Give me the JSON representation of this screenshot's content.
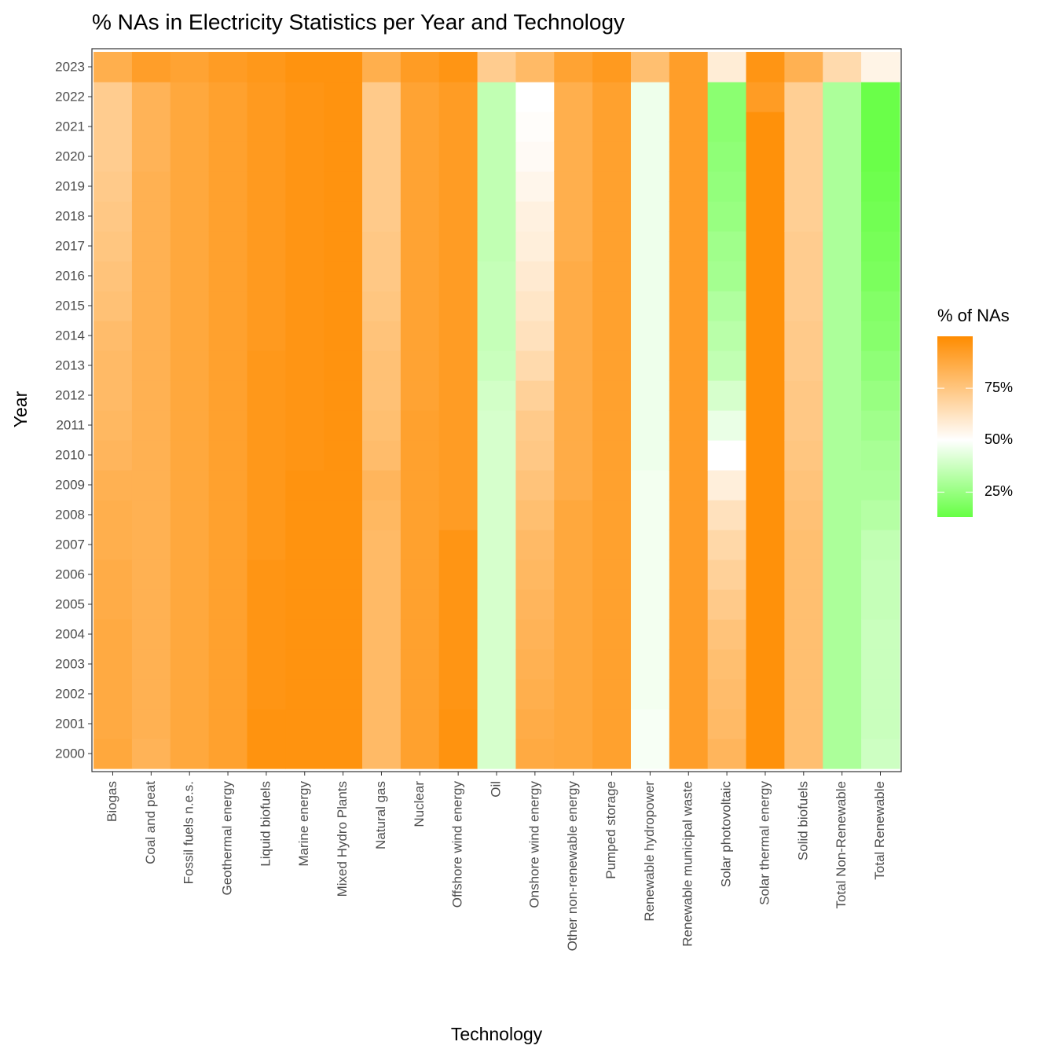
{
  "chart_data": {
    "type": "heatmap",
    "title": "% NAs in Electricity Statistics per Year and Technology",
    "x_label": "Technology",
    "y_label": "Year",
    "x_categories": [
      "Biogas",
      "Coal and peat",
      "Fossil fuels n.e.s.",
      "Geothermal energy",
      "Liquid biofuels",
      "Marine energy",
      "Mixed Hydro Plants",
      "Natural gas",
      "Nuclear",
      "Offshore wind energy",
      "Oil",
      "Onshore wind energy",
      "Other non-renewable energy",
      "Pumped storage",
      "Renewable hydropower",
      "Renewable municipal waste",
      "Solar photovoltaic",
      "Solar thermal energy",
      "Solid biofuels",
      "Total Non-Renewable",
      "Total Renewable"
    ],
    "y_categories": [
      2000,
      2001,
      2002,
      2003,
      2004,
      2005,
      2006,
      2007,
      2008,
      2009,
      2010,
      2011,
      2012,
      2013,
      2014,
      2015,
      2016,
      2017,
      2018,
      2019,
      2020,
      2021,
      2022,
      2023
    ],
    "values": [
      [
        88,
        87,
        87,
        87,
        87,
        86,
        86,
        85,
        85,
        84,
        82,
        81,
        80,
        80,
        79,
        77,
        76,
        75,
        74,
        73,
        72,
        72,
        72,
        85
      ],
      [
        83,
        84,
        84,
        84,
        84,
        84,
        84,
        84,
        84,
        84,
        84,
        84,
        84,
        84,
        84,
        84,
        84,
        84,
        84,
        84,
        83,
        83,
        83,
        92
      ],
      [
        88,
        88,
        88,
        88,
        88,
        88,
        88,
        88,
        88,
        88,
        88,
        88,
        88,
        88,
        88,
        88,
        88,
        88,
        88,
        88,
        88,
        88,
        88,
        90
      ],
      [
        91,
        91,
        91,
        91,
        91,
        91,
        91,
        91,
        91,
        91,
        91,
        91,
        91,
        91,
        91,
        91,
        91,
        91,
        91,
        91,
        91,
        91,
        91,
        93
      ],
      [
        97,
        97,
        96,
        96,
        96,
        96,
        96,
        95,
        95,
        95,
        95,
        95,
        95,
        95,
        94,
        94,
        94,
        94,
        94,
        94,
        94,
        94,
        94,
        95
      ],
      [
        97,
        97,
        97,
        97,
        97,
        97,
        97,
        97,
        97,
        97,
        96,
        96,
        96,
        96,
        96,
        96,
        96,
        96,
        96,
        96,
        96,
        96,
        96,
        97
      ],
      [
        97,
        97,
        97,
        97,
        97,
        97,
        97,
        97,
        97,
        97,
        97,
        97,
        97,
        97,
        97,
        97,
        97,
        97,
        97,
        97,
        97,
        97,
        97,
        97
      ],
      [
        80,
        80,
        80,
        80,
        80,
        80,
        80,
        80,
        81,
        82,
        79,
        78,
        77,
        77,
        76,
        75,
        74,
        74,
        73,
        73,
        73,
        73,
        73,
        85
      ],
      [
        91,
        91,
        91,
        91,
        91,
        91,
        91,
        91,
        91,
        91,
        91,
        91,
        90,
        90,
        90,
        90,
        90,
        90,
        90,
        90,
        90,
        90,
        90,
        93
      ],
      [
        97,
        97,
        96,
        96,
        96,
        96,
        96,
        96,
        93,
        93,
        93,
        93,
        93,
        93,
        93,
        93,
        93,
        93,
        93,
        93,
        93,
        93,
        93,
        96
      ],
      [
        40,
        40,
        40,
        40,
        40,
        40,
        40,
        40,
        40,
        40,
        40,
        40,
        39,
        37,
        36,
        36,
        36,
        35,
        35,
        35,
        35,
        35,
        35,
        72
      ],
      [
        87,
        86,
        85,
        84,
        83,
        82,
        81,
        80,
        78,
        76,
        74,
        73,
        70,
        66,
        63,
        61,
        59,
        57,
        56,
        54,
        52,
        51,
        50,
        80
      ],
      [
        88,
        88,
        88,
        88,
        88,
        88,
        88,
        88,
        88,
        86,
        86,
        86,
        86,
        86,
        86,
        86,
        86,
        85,
        85,
        85,
        85,
        85,
        85,
        90
      ],
      [
        91,
        91,
        91,
        91,
        91,
        91,
        91,
        91,
        91,
        91,
        91,
        91,
        91,
        91,
        91,
        91,
        91,
        91,
        91,
        91,
        91,
        91,
        91,
        94
      ],
      [
        48,
        48,
        47,
        47,
        47,
        47,
        47,
        47,
        47,
        47,
        46,
        46,
        46,
        46,
        46,
        46,
        46,
        46,
        46,
        46,
        46,
        46,
        46,
        78
      ],
      [
        92,
        92,
        92,
        92,
        92,
        92,
        92,
        92,
        92,
        92,
        92,
        92,
        92,
        92,
        92,
        92,
        92,
        92,
        92,
        92,
        92,
        92,
        92,
        92
      ],
      [
        82,
        80,
        79,
        78,
        76,
        73,
        70,
        67,
        63,
        57,
        50,
        45,
        40,
        35,
        33,
        31,
        28,
        27,
        25,
        24,
        23,
        22,
        22,
        58
      ],
      [
        98,
        98,
        98,
        98,
        98,
        98,
        98,
        98,
        98,
        98,
        98,
        98,
        98,
        98,
        98,
        98,
        98,
        98,
        98,
        98,
        98,
        98,
        93,
        96
      ],
      [
        78,
        78,
        78,
        78,
        78,
        78,
        78,
        78,
        77,
        76,
        75,
        74,
        74,
        73,
        73,
        72,
        72,
        72,
        71,
        71,
        71,
        71,
        71,
        84
      ],
      [
        30,
        30,
        30,
        30,
        30,
        30,
        30,
        30,
        30,
        30,
        30,
        30,
        30,
        30,
        30,
        30,
        30,
        30,
        30,
        30,
        30,
        30,
        30,
        66
      ],
      [
        38,
        37,
        37,
        37,
        37,
        36,
        36,
        35,
        32,
        30,
        29,
        27,
        25,
        23,
        21,
        20,
        18,
        17,
        16,
        15,
        14,
        14,
        14,
        55
      ]
    ],
    "legend_title": "% of NAs",
    "zlim": [
      13,
      100
    ],
    "zticks": [
      {
        "value": 25,
        "label": "25%"
      },
      {
        "value": 50,
        "label": "50%"
      },
      {
        "value": 75,
        "label": "75%"
      }
    ],
    "low_color": "#66ff44",
    "mid_color": "#ffffff",
    "high_color": "#ff8c00",
    "midpoint": 50
  }
}
